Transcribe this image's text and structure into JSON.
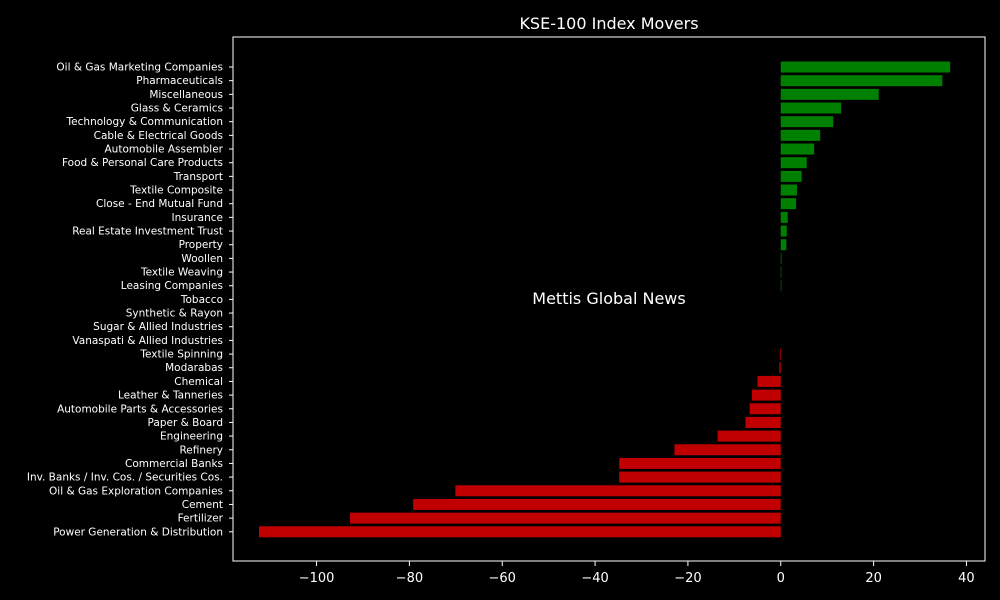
{
  "chart_data": {
    "type": "bar",
    "orientation": "horizontal",
    "title": "KSE-100 Index Movers",
    "watermark": "Mettis Global News",
    "xlim": [
      -118,
      44
    ],
    "xticks": [
      -100,
      -80,
      -60,
      -40,
      -20,
      0,
      20,
      40
    ],
    "xtick_labels": [
      "−100",
      "−80",
      "−60",
      "−40",
      "−20",
      "0",
      "20",
      "40"
    ],
    "positive_color": "#008000",
    "negative_color": "#c00000",
    "watermark_color": "#a0522d",
    "categories": [
      "Oil & Gas Marketing Companies",
      "Pharmaceuticals",
      "Miscellaneous",
      "Glass & Ceramics",
      "Technology & Communication",
      "Cable & Electrical Goods",
      "Automobile Assembler",
      "Food & Personal Care Products",
      "Transport",
      "Textile Composite",
      "Close - End Mutual Fund",
      "Insurance",
      "Real Estate Investment Trust",
      "Property",
      "Woollen",
      "Textile Weaving",
      "Leasing Companies",
      "Tobacco",
      "Synthetic & Rayon",
      "Sugar & Allied Industries",
      "Vanaspati & Allied Industries",
      "Textile Spinning",
      "Modarabas",
      "Chemical",
      "Leather & Tanneries",
      "Automobile Parts & Accessories",
      "Paper & Board",
      "Engineering",
      "Refinery",
      "Commercial Banks",
      "Inv. Banks / Inv. Cos. / Securities Cos.",
      "Oil & Gas Exploration Companies",
      "Cement",
      "Fertilizer",
      "Power Generation & Distribution"
    ],
    "values": [
      36.5,
      34.8,
      21.1,
      13.0,
      11.3,
      8.5,
      7.2,
      5.6,
      4.5,
      3.5,
      3.3,
      1.5,
      1.3,
      1.2,
      0.15,
      0.12,
      0.1,
      0,
      0,
      0,
      0,
      -0.2,
      -0.3,
      -5.0,
      -6.2,
      -6.7,
      -7.6,
      -13.6,
      -22.9,
      -34.8,
      -34.8,
      -70.1,
      -79.2,
      -92.8,
      -112.4
    ]
  }
}
